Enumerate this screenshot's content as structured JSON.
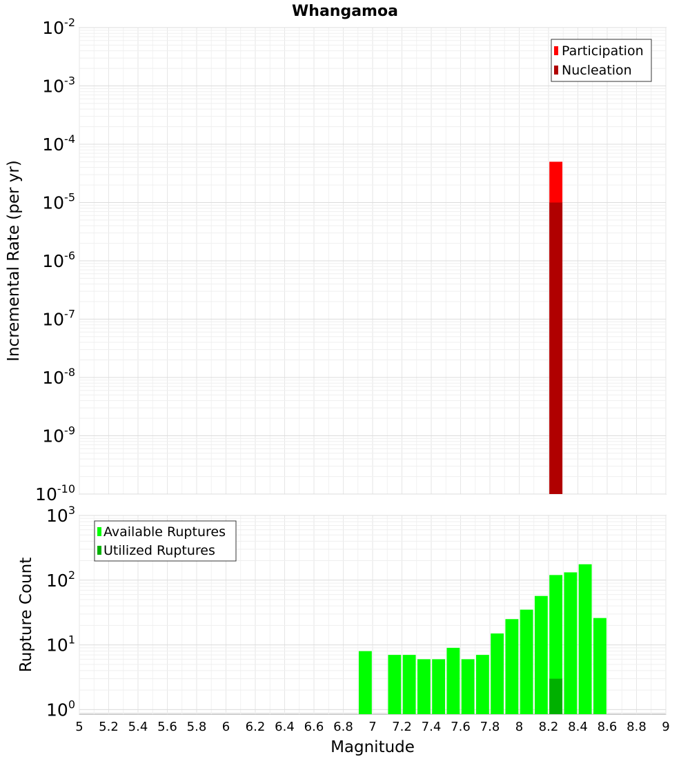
{
  "title": "Whangamoa",
  "chart_data": [
    {
      "type": "bar",
      "ylabel": "Incremental Rate (per yr)",
      "yscale": "log",
      "ylim": [
        1e-10,
        0.01
      ],
      "xlim": [
        5,
        9
      ],
      "bar_width": 0.1,
      "y_ticks": [
        {
          "base": "10",
          "exp": "-2"
        },
        {
          "base": "10",
          "exp": "-3"
        },
        {
          "base": "10",
          "exp": "-4"
        },
        {
          "base": "10",
          "exp": "-5"
        },
        {
          "base": "10",
          "exp": "-6"
        },
        {
          "base": "10",
          "exp": "-7"
        },
        {
          "base": "10",
          "exp": "-8"
        },
        {
          "base": "10",
          "exp": "-9"
        },
        {
          "base": "10",
          "exp": "-10"
        }
      ],
      "legend": {
        "placement": "top-right",
        "items": [
          {
            "label": "Participation",
            "color": "#ff0000"
          },
          {
            "label": "Nucleation",
            "color": "#b00000"
          }
        ]
      },
      "series": [
        {
          "name": "Participation",
          "color": "#ff0000",
          "x": [
            8.25
          ],
          "values": [
            5e-05
          ]
        },
        {
          "name": "Nucleation",
          "color": "#b00000",
          "x": [
            8.25
          ],
          "values": [
            1e-05
          ]
        }
      ]
    },
    {
      "type": "bar",
      "xlabel": "Magnitude",
      "ylabel": "Rupture Count",
      "yscale": "log",
      "ylim": [
        0.85,
        1000
      ],
      "xlim": [
        5,
        9
      ],
      "bar_width": 0.1,
      "y_ticks": [
        {
          "value": 1000,
          "base": "10",
          "exp": "3"
        },
        {
          "value": 100,
          "base": "10",
          "exp": "2"
        },
        {
          "value": 10,
          "base": "10",
          "exp": "1"
        },
        {
          "value": 1,
          "base": "10",
          "exp": "0"
        }
      ],
      "x_ticks": [
        "5",
        "5.2",
        "5.4",
        "5.6",
        "5.8",
        "6",
        "6.2",
        "6.4",
        "6.6",
        "6.8",
        "7",
        "7.2",
        "7.4",
        "7.6",
        "7.8",
        "8",
        "8.2",
        "8.4",
        "8.6",
        "8.8",
        "9"
      ],
      "legend": {
        "placement": "top-left",
        "items": [
          {
            "label": "Available Ruptures",
            "color": "#00ff00"
          },
          {
            "label": "Utilized Ruptures",
            "color": "#00b000"
          }
        ]
      },
      "series": [
        {
          "name": "Available Ruptures",
          "color": "#00ff00",
          "x": [
            6.95,
            7.15,
            7.25,
            7.35,
            7.45,
            7.55,
            7.65,
            7.75,
            7.85,
            7.95,
            8.05,
            8.15,
            8.25,
            8.35,
            8.45,
            8.55
          ],
          "values": [
            8,
            7,
            7,
            6,
            6,
            9,
            6,
            7,
            15,
            25,
            35,
            57,
            120,
            132,
            176,
            26
          ]
        },
        {
          "name": "Utilized Ruptures",
          "color": "#00b000",
          "x": [
            8.25
          ],
          "values": [
            3
          ]
        }
      ]
    }
  ]
}
